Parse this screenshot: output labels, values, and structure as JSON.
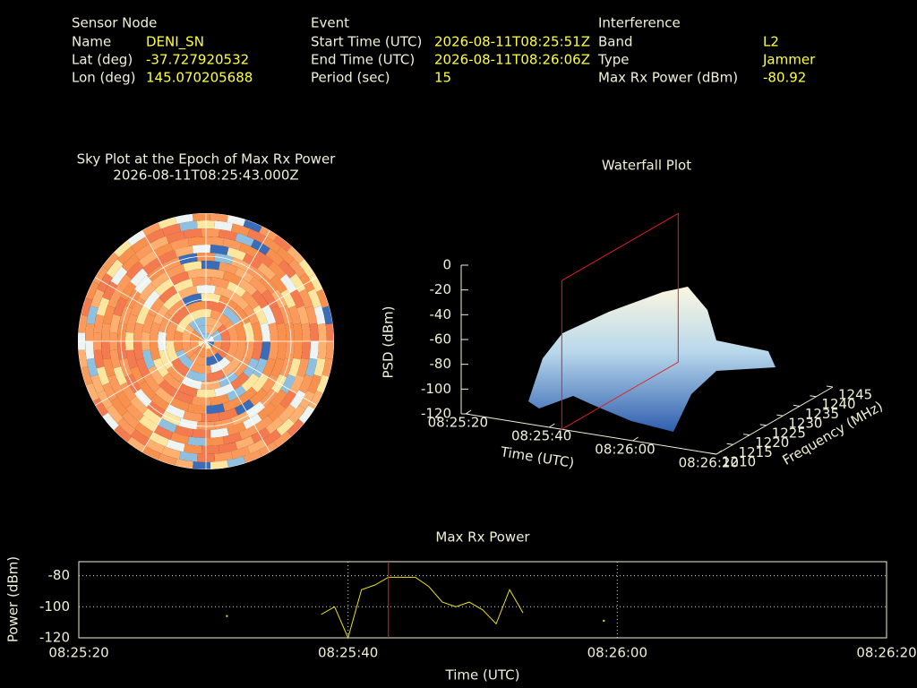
{
  "header": {
    "columns": [
      {
        "title": "Sensor Node",
        "rows": [
          {
            "label": "Name",
            "value": "DENI_SN"
          },
          {
            "label": "Lat (deg)",
            "value": -37.727920532
          },
          {
            "label": "Lon (deg)",
            "value": 145.070205688
          }
        ]
      },
      {
        "title": "Event",
        "rows": [
          {
            "label": "Start Time (UTC)",
            "value": "2026-08-11T08:25:51Z"
          },
          {
            "label": "End Time (UTC)",
            "value": "2026-08-11T08:26:06Z"
          },
          {
            "label": "Period (sec)",
            "value": 15
          }
        ]
      },
      {
        "title": "Interference",
        "rows": [
          {
            "label": "Band",
            "value": "L2"
          },
          {
            "label": "Type",
            "value": "Jammer"
          },
          {
            "label": "Max Rx Power (dBm)",
            "value": -80.92
          }
        ]
      }
    ]
  },
  "chart_data": [
    {
      "type": "polar",
      "title": "Sky Plot at the Epoch of Max Rx Power",
      "subtitle": "2026-08-11T08:25:43.000Z"
    },
    {
      "type": "surface",
      "title": "Waterfall Plot",
      "xlabel": "Time (UTC)",
      "ylabel": "Frequency (MHz)",
      "zlabel": "PSD (dBm)",
      "xlim": [
        30320,
        30380
      ],
      "xticks": [
        {
          "value": 30320,
          "label": "08:25:20"
        },
        {
          "value": 30340,
          "label": "08:25:40"
        },
        {
          "value": 30360,
          "label": "08:26:00"
        },
        {
          "value": 30380,
          "label": "08:26:20"
        }
      ],
      "ylim": [
        1210,
        1245
      ],
      "yticks": [
        1210,
        1215,
        1220,
        1225,
        1230,
        1235,
        1240,
        1245
      ],
      "zlim": [
        -120,
        0
      ],
      "zticks": [
        0,
        -20,
        -40,
        -60,
        -80,
        -100,
        -120
      ],
      "marker_x": 30343,
      "marker_color": "#e02020"
    },
    {
      "type": "line",
      "title": "Max Rx Power",
      "xlabel": "Time (UTC)",
      "ylabel": "Power (dBm)",
      "x": [
        30331,
        30332,
        30338,
        30339,
        30340,
        30341,
        30342,
        30343,
        30344,
        30345,
        30346,
        30347,
        30348,
        30349,
        30350,
        30351,
        30352,
        30353,
        30354,
        30359
      ],
      "series": [
        {
          "name": "Max Rx Power",
          "color": "#e8e020",
          "values": [
            -106,
            null,
            -105,
            -100,
            -120,
            -89,
            -86,
            -81,
            -81,
            -81,
            -87,
            -97,
            -100,
            -97,
            -102,
            -111,
            -89,
            -104,
            null,
            -109
          ]
        }
      ],
      "xlim": [
        30320,
        30380
      ],
      "xticks": [
        {
          "value": 30320,
          "label": "08:25:20"
        },
        {
          "value": 30340,
          "label": "08:25:40"
        },
        {
          "value": 30360,
          "label": "08:26:00"
        },
        {
          "value": 30380,
          "label": "08:26:20"
        }
      ],
      "ylim": [
        -120,
        -71
      ],
      "yticks": [
        -80,
        -100,
        -120
      ],
      "grid": true,
      "marker_x": 30343,
      "marker_color": "#e02020"
    }
  ]
}
